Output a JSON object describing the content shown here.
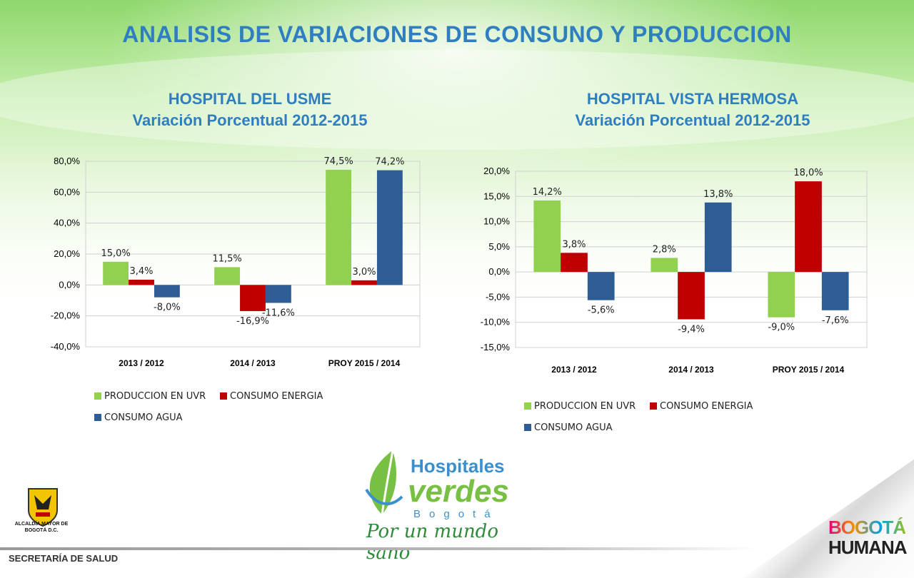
{
  "title": "ANALISIS DE VARIACIONES DE CONSUNO Y PRODUCCION",
  "footer": "SECRETARÍA DE SALUD",
  "crest_label": "ALCALDÍA MAYOR DE BOGOTÁ D.C.",
  "logo": {
    "name_line1": "Hospitales",
    "name_line2": "verdes",
    "city": "Bogotá",
    "slogan": "Por un mundo sano"
  },
  "bogota_logo": {
    "line1": "BOGOTÁ",
    "line2": "HUMANA"
  },
  "colors": {
    "produccion": "#92d050",
    "energia": "#c00000",
    "agua": "#2e5d96",
    "title": "#2f7fc0"
  },
  "chart_data": [
    {
      "type": "bar",
      "title_line1": "HOSPITAL DEL USME",
      "title_line2": "Variación Porcentual  2012-2015",
      "categories": [
        "2013 / 2012",
        "2014  / 2013",
        "PROY 2015 / 2014"
      ],
      "ylim": [
        -40,
        80
      ],
      "yticks": [
        -40,
        -20,
        0,
        20,
        40,
        60,
        80
      ],
      "ytick_labels": [
        "-40,0%",
        "-20,0%",
        "0,0%",
        "20,0%",
        "40,0%",
        "60,0%",
        "80,0%"
      ],
      "series": [
        {
          "name": "PRODUCCION EN UVR",
          "values": [
            15.0,
            11.5,
            74.5
          ],
          "labels": [
            "15,0%",
            "11,5%",
            "74,5%"
          ]
        },
        {
          "name": "CONSUMO ENERGIA",
          "values": [
            3.4,
            -16.9,
            3.0
          ],
          "labels": [
            "3,4%",
            "-16,9%",
            "3,0%"
          ]
        },
        {
          "name": "CONSUMO AGUA",
          "values": [
            -8.0,
            -11.6,
            74.2
          ],
          "labels": [
            "-8,0%",
            "-11,6%",
            "74,2%"
          ]
        }
      ],
      "grid": true,
      "legend_position": "bottom"
    },
    {
      "type": "bar",
      "title_line1": "HOSPITAL VISTA HERMOSA",
      "title_line2": "Variación Porcentual  2012-2015",
      "categories": [
        "2013 / 2012",
        "2014  / 2013",
        "PROY 2015 / 2014"
      ],
      "ylim": [
        -15,
        20
      ],
      "yticks": [
        -15,
        -10,
        -5,
        0,
        5,
        10,
        15,
        20
      ],
      "ytick_labels": [
        "-15,0%",
        "-10,0%",
        "-5,0%",
        "0,0%",
        "5,0%",
        "10,0%",
        "15,0%",
        "20,0%"
      ],
      "series": [
        {
          "name": "PRODUCCION EN UVR",
          "values": [
            14.2,
            2.8,
            -9.0
          ],
          "labels": [
            "14,2%",
            "2,8%",
            "-9,0%"
          ]
        },
        {
          "name": "CONSUMO ENERGIA",
          "values": [
            3.8,
            -9.4,
            18.0
          ],
          "labels": [
            "3,8%",
            "-9,4%",
            "18,0%"
          ]
        },
        {
          "name": "CONSUMO AGUA",
          "values": [
            -5.6,
            13.8,
            -7.6
          ],
          "labels": [
            "-5,6%",
            "13,8%",
            "-7,6%"
          ]
        }
      ],
      "grid": true,
      "legend_position": "bottom"
    }
  ]
}
